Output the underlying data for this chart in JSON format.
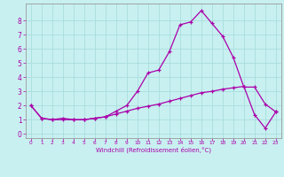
{
  "xlabel": "Windchill (Refroidissement éolien,°C)",
  "bg_color": "#c8f0f0",
  "line_color": "#aa00aa",
  "grid_color": "#aadddd",
  "xlim": [
    -0.5,
    23.5
  ],
  "ylim": [
    -0.3,
    9.2
  ],
  "xticks": [
    0,
    1,
    2,
    3,
    4,
    5,
    6,
    7,
    8,
    9,
    10,
    11,
    12,
    13,
    14,
    15,
    16,
    17,
    18,
    19,
    20,
    21,
    22,
    23
  ],
  "yticks": [
    0,
    1,
    2,
    3,
    4,
    5,
    6,
    7,
    8
  ],
  "line1_x": [
    0,
    1,
    2,
    3,
    4,
    5,
    6,
    7,
    8,
    9,
    10,
    11,
    12,
    13,
    14,
    15,
    16,
    17,
    18,
    19,
    20,
    21,
    22,
    23
  ],
  "line1_y": [
    2.0,
    1.1,
    1.0,
    1.1,
    1.0,
    1.0,
    1.1,
    1.2,
    1.6,
    2.0,
    3.0,
    4.3,
    4.5,
    5.8,
    7.7,
    7.9,
    8.7,
    7.8,
    6.9,
    5.4,
    3.3,
    3.3,
    2.1,
    1.55
  ],
  "line2_x": [
    0,
    1,
    2,
    3,
    4,
    5,
    6,
    7,
    8,
    9,
    10,
    11,
    12,
    13,
    14,
    15,
    16,
    17,
    18,
    19,
    20,
    21,
    22,
    23
  ],
  "line2_y": [
    2.0,
    1.1,
    1.0,
    1.0,
    1.0,
    1.0,
    1.1,
    1.2,
    1.4,
    1.6,
    1.8,
    1.95,
    2.1,
    2.3,
    2.5,
    2.7,
    2.9,
    3.0,
    3.15,
    3.25,
    3.35,
    1.35,
    0.4,
    1.55
  ]
}
